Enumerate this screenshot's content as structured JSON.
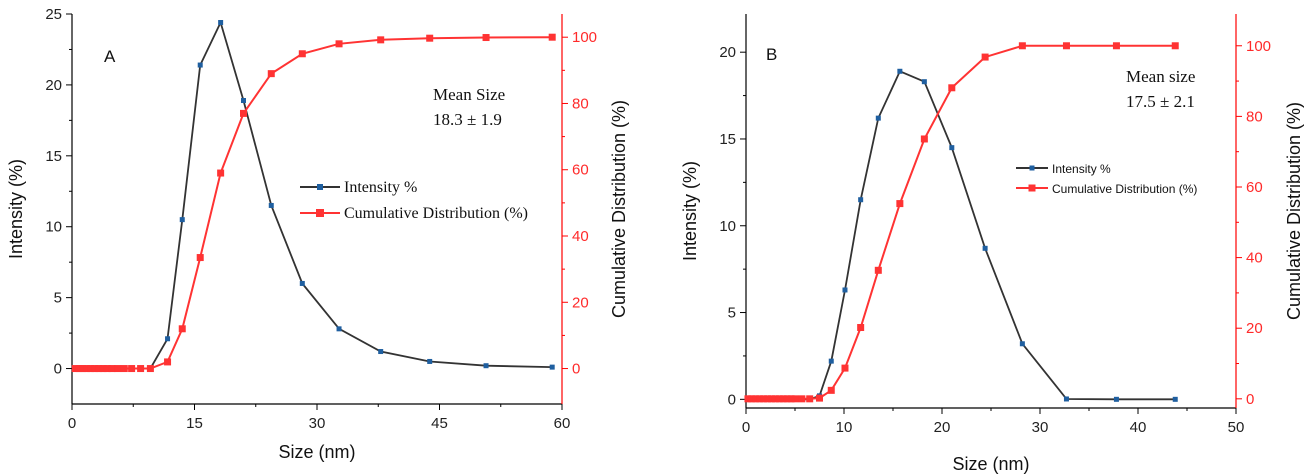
{
  "colors": {
    "intensity_line": "#333333",
    "intensity_marker": "#1f5fa0",
    "cumulative": "#ff3333",
    "right_axis": "#ff0000"
  },
  "chart_data": [
    {
      "type": "line",
      "panel_label": "A",
      "annotation": [
        "Mean Size",
        "18.3 ± 1.9"
      ],
      "xlabel": "Size (nm)",
      "ylabel": "Intensity (%)",
      "y2label": "Cumulative Distribution (%)",
      "xlim": [
        0,
        60
      ],
      "ylim": [
        -2.5,
        25
      ],
      "y2lim": [
        -10.7,
        107
      ],
      "xticks": [
        "0",
        "15",
        "30",
        "45",
        "60"
      ],
      "yticks": [
        "0",
        "5",
        "10",
        "15",
        "20",
        "25"
      ],
      "y2ticks": [
        "0",
        "20",
        "40",
        "60",
        "80",
        "100"
      ],
      "legend_placement": "center-right",
      "series": [
        {
          "name": "Intensity %",
          "axis": "left",
          "x": [
            0.4,
            0.9,
            1.3,
            1.8,
            2.3,
            2.8,
            3.3,
            3.8,
            4.3,
            4.9,
            5.6,
            6.4,
            7.3,
            8.4,
            9.6,
            11.7,
            13.5,
            15.7,
            18.2,
            21.0,
            24.4,
            28.2,
            32.7,
            37.8,
            43.8,
            50.7,
            58.8
          ],
          "y": [
            0,
            0,
            0,
            0,
            0,
            0,
            0,
            0,
            0,
            0,
            0,
            0,
            0,
            0,
            0,
            2.1,
            10.5,
            21.4,
            24.4,
            18.9,
            11.5,
            6.0,
            2.8,
            1.2,
            0.5,
            0.2,
            0.1
          ]
        },
        {
          "name": "Cumulative Distribution (%)",
          "axis": "right",
          "x": [
            0.4,
            0.9,
            1.3,
            1.8,
            2.3,
            2.8,
            3.3,
            3.8,
            4.3,
            4.9,
            5.6,
            6.4,
            7.3,
            8.4,
            9.6,
            11.7,
            13.5,
            15.7,
            18.2,
            21.0,
            24.4,
            28.2,
            32.7,
            37.8,
            43.8,
            50.7,
            58.8
          ],
          "y": [
            0,
            0,
            0,
            0,
            0,
            0,
            0,
            0,
            0,
            0,
            0,
            0,
            0,
            0,
            0,
            2,
            12,
            33.5,
            59,
            77,
            89,
            95,
            98,
            99.2,
            99.7,
            99.9,
            100
          ]
        }
      ]
    },
    {
      "type": "line",
      "panel_label": "B",
      "annotation": [
        "Mean size",
        "17.5 ± 2.1"
      ],
      "xlabel": "Size (nm)",
      "ylabel": "Intensity (%)",
      "y2label": "Cumulative Distribution (%)",
      "xlim": [
        0,
        50
      ],
      "ylim": [
        -0.5,
        22.2
      ],
      "y2lim": [
        -2.6,
        109
      ],
      "xticks": [
        "0",
        "10",
        "20",
        "30",
        "40",
        "50"
      ],
      "yticks": [
        "0",
        "5",
        "10",
        "15",
        "20"
      ],
      "y2ticks": [
        "0",
        "20",
        "40",
        "60",
        "80",
        "100"
      ],
      "legend_placement": "center-right",
      "series": [
        {
          "name": "Intensity %",
          "axis": "left",
          "x": [
            0.2,
            0.6,
            1.0,
            1.4,
            1.8,
            2.2,
            2.6,
            3.0,
            3.4,
            3.8,
            4.2,
            4.6,
            5.0,
            5.7,
            6.5,
            7.5,
            8.7,
            10.1,
            11.7,
            13.5,
            15.7,
            18.2,
            21.0,
            24.4,
            28.2,
            32.7,
            37.8,
            43.8
          ],
          "y": [
            0,
            0,
            0,
            0,
            0,
            0,
            0,
            0,
            0,
            0,
            0,
            0,
            0,
            0,
            0,
            0.2,
            2.2,
            6.3,
            11.5,
            16.2,
            18.9,
            18.3,
            14.5,
            8.7,
            3.2,
            0.02,
            0,
            0
          ]
        },
        {
          "name": "Cumulative Distribution (%)",
          "axis": "right",
          "x": [
            0.2,
            0.6,
            1.0,
            1.4,
            1.8,
            2.2,
            2.6,
            3.0,
            3.4,
            3.8,
            4.2,
            4.6,
            5.0,
            5.7,
            6.5,
            7.5,
            8.7,
            10.1,
            11.7,
            13.5,
            15.7,
            18.2,
            21.0,
            24.4,
            28.2,
            32.7,
            37.8,
            43.8
          ],
          "y": [
            0,
            0,
            0,
            0,
            0,
            0,
            0,
            0,
            0,
            0,
            0,
            0,
            0,
            0,
            0,
            0.2,
            2.4,
            8.7,
            20.2,
            36.4,
            55.3,
            73.6,
            88.1,
            96.8,
            100,
            100,
            100,
            100
          ]
        }
      ]
    }
  ]
}
